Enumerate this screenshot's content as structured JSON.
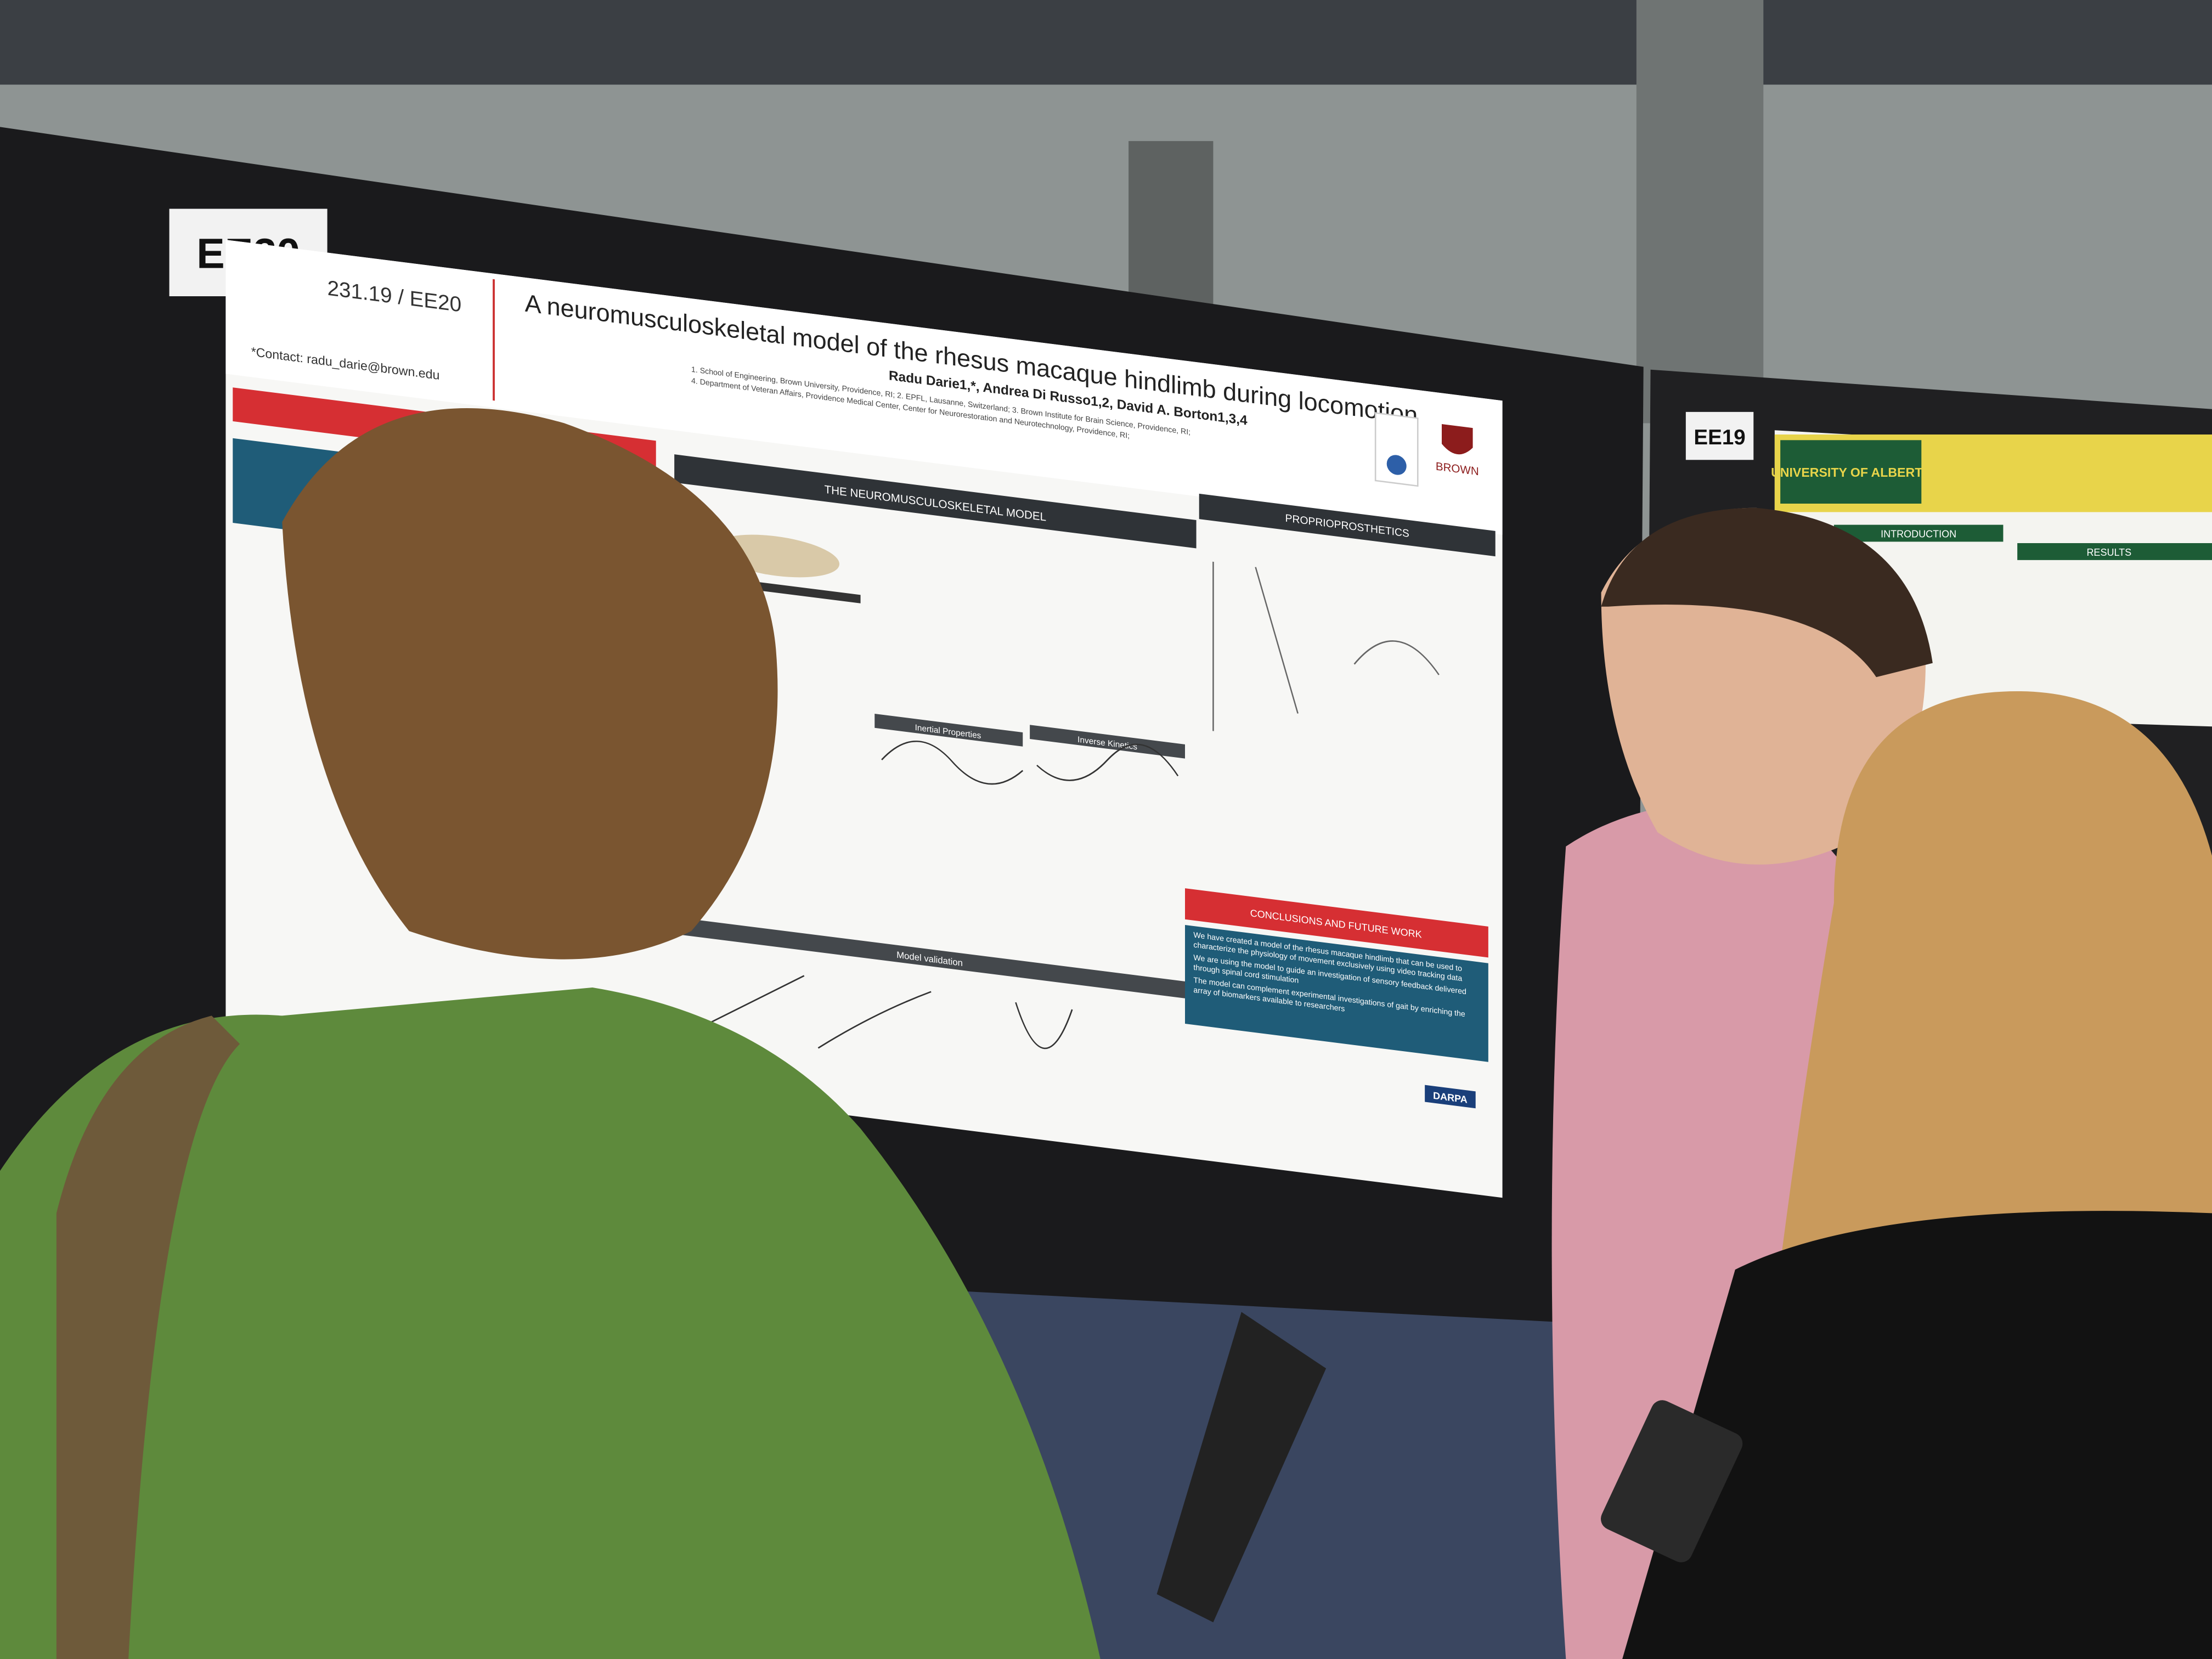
{
  "board_label": "EE20",
  "poster": {
    "id": "231.19 / EE20",
    "contact": "*Contact: radu_darie@brown.edu",
    "title": "A neuromusculoskeletal model of the rhesus macaque hindlimb during locomotion",
    "authors": "Radu Darie1,*, Andrea Di Russo1,2, David A. Borton1,3,4",
    "affiliations": [
      "1. School of Engineering, Brown University, Providence, RI; 2. EPFL, Lausanne, Switzerland; 3. Brown Institute for Brain Science, Providence, RI;",
      "4. Department of Veteran Affairs, Providence Medical Center, Center for Neurorestoration and Neurotechnology, Providence, RI;"
    ],
    "sections": [
      "THE NEUROMUSCULOSKELETAL MODEL",
      "PROPRIOPROSTHETICS",
      "CONCLUSIONS AND FUTURE WORK",
      "Model validation"
    ],
    "panels": [
      "Inertial Properties",
      "Inverse Kinetics"
    ],
    "conclusions": [
      "We have created a model of the rhesus macaque hindlimb that can be used to characterize the physiology of movement exclusively using video tracking data",
      "We are using the model to guide an investigation of sensory feedback delivered through spinal cord stimulation",
      "The model can complement experimental investigations of gait by enriching the array of biomarkers available to researchers"
    ],
    "logos": [
      "BROWN",
      "DARPA"
    ]
  },
  "neighbor_poster": {
    "board_label": "EE19",
    "institution": "UNIVERSITY OF ALBERTA",
    "sections": [
      "INTRODUCTION",
      "RESULTS"
    ]
  }
}
